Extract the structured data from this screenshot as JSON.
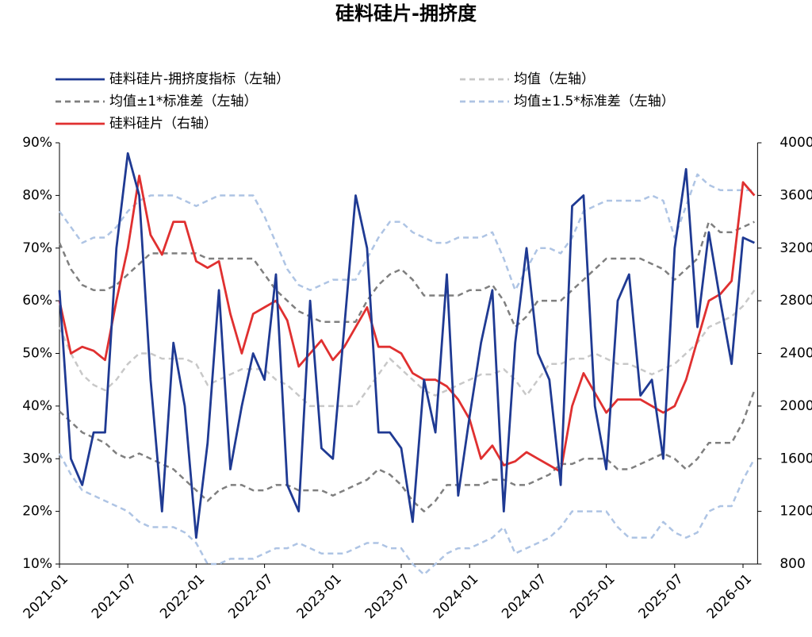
{
  "chart_data": {
    "type": "line",
    "title": "硅料硅片-拥挤度",
    "categories": [
      "2021-01",
      "2021-02",
      "2021-03",
      "2021-04",
      "2021-05",
      "2021-06",
      "2021-07",
      "2021-08",
      "2021-09",
      "2021-10",
      "2021-11",
      "2021-12",
      "2022-01",
      "2022-02",
      "2022-03",
      "2022-04",
      "2022-05",
      "2022-06",
      "2022-07",
      "2022-08",
      "2022-09",
      "2022-10",
      "2022-11",
      "2022-12",
      "2023-01",
      "2023-02",
      "2023-03",
      "2023-04",
      "2023-05",
      "2023-06",
      "2023-07",
      "2023-08",
      "2023-09",
      "2023-10",
      "2023-11",
      "2023-12",
      "2024-01",
      "2024-02",
      "2024-03",
      "2024-04",
      "2024-05",
      "2024-06",
      "2024-07",
      "2024-08",
      "2024-09",
      "2024-10",
      "2024-11",
      "2024-12",
      "2025-01",
      "2025-02",
      "2025-03",
      "2025-04",
      "2025-05",
      "2025-06",
      "2025-07",
      "2025-08",
      "2025-09",
      "2025-10",
      "2025-11",
      "2025-12",
      "2026-01",
      "2026-02"
    ],
    "xticks": [
      "2021-01",
      "2021-07",
      "2022-01",
      "2022-07",
      "2023-01",
      "2023-07",
      "2024-01",
      "2024-07",
      "2025-01",
      "2025-07",
      "2026-01"
    ],
    "ylim": [
      10,
      90
    ],
    "yticks": [
      {
        "value": 10,
        "label": "10%"
      },
      {
        "value": 20,
        "label": "20%"
      },
      {
        "value": 30,
        "label": "30%"
      },
      {
        "value": 40,
        "label": "40%"
      },
      {
        "value": 50,
        "label": "50%"
      },
      {
        "value": 60,
        "label": "60%"
      },
      {
        "value": 70,
        "label": "70%"
      },
      {
        "value": 80,
        "label": "80%"
      },
      {
        "value": 90,
        "label": "90%"
      }
    ],
    "y2lim": [
      800,
      4000
    ],
    "y2ticks": [
      800,
      1200,
      1600,
      2000,
      2400,
      2800,
      3200,
      3600,
      4000
    ],
    "series": [
      {
        "name": "硅料硅片-拥挤度指标（左轴）",
        "color": "#1f3a93",
        "dash": false,
        "axis": "y",
        "values": [
          62,
          30,
          25,
          35,
          35,
          70,
          88,
          80,
          45,
          20,
          52,
          40,
          15,
          33,
          62,
          28,
          40,
          50,
          45,
          65,
          25,
          20,
          60,
          32,
          30,
          55,
          80,
          70,
          35,
          35,
          32,
          18,
          45,
          35,
          65,
          23,
          38,
          52,
          62,
          20,
          52,
          70,
          50,
          45,
          25,
          78,
          80,
          40,
          28,
          60,
          65,
          42,
          45,
          30,
          70,
          85,
          55,
          73,
          60,
          48,
          72,
          71
        ]
      },
      {
        "name": "均值（左轴）",
        "color": "#c8c8c8",
        "dash": true,
        "axis": "y",
        "values": [
          55,
          50,
          46,
          44,
          43,
          45,
          48,
          50,
          50,
          49,
          49,
          49,
          48,
          44,
          45,
          46,
          47,
          47,
          47,
          45,
          44,
          42,
          40,
          40,
          40,
          40,
          40,
          43,
          46,
          49,
          47,
          45,
          43,
          42,
          43,
          44,
          45,
          46,
          46,
          47,
          45,
          42,
          45,
          48,
          48,
          49,
          49,
          50,
          49,
          48,
          48,
          47,
          46,
          47,
          48,
          50,
          52,
          55,
          56,
          57,
          59,
          62
        ]
      },
      {
        "name": "均值±1*标准差（左轴）",
        "color": "#7f7f7f",
        "dash": true,
        "axis": "y",
        "upper": [
          71,
          66,
          63,
          62,
          62,
          63,
          65,
          67,
          69,
          69,
          69,
          69,
          69,
          68,
          68,
          68,
          68,
          68,
          65,
          62,
          60,
          58,
          57,
          56,
          56,
          56,
          56,
          60,
          63,
          65,
          66,
          64,
          61,
          61,
          61,
          61,
          62,
          62,
          63,
          60,
          55,
          57,
          60,
          60,
          60,
          62,
          64,
          66,
          68,
          68,
          68,
          68,
          67,
          66,
          64,
          66,
          68,
          75,
          73,
          73,
          74,
          75
        ],
        "lower": [
          39,
          37,
          35,
          34,
          33,
          31,
          30,
          31,
          30,
          29,
          28,
          26,
          24,
          22,
          24,
          25,
          25,
          24,
          24,
          25,
          25,
          24,
          24,
          24,
          23,
          24,
          25,
          26,
          28,
          27,
          25,
          22,
          20,
          22,
          25,
          25,
          25,
          25,
          26,
          26,
          25,
          25,
          26,
          27,
          29,
          29,
          30,
          30,
          30,
          28,
          28,
          29,
          30,
          31,
          30,
          28,
          30,
          33,
          33,
          33,
          37,
          43
        ]
      },
      {
        "name": "均值±1.5*标准差（左轴）",
        "color": "#aec4e4",
        "dash": true,
        "axis": "y",
        "upper": [
          77,
          74,
          71,
          72,
          72,
          74,
          77,
          79,
          80,
          80,
          80,
          79,
          78,
          79,
          80,
          80,
          80,
          80,
          76,
          71,
          66,
          63,
          62,
          63,
          64,
          64,
          64,
          68,
          72,
          75,
          75,
          73,
          72,
          71,
          71,
          72,
          72,
          72,
          73,
          68,
          62,
          66,
          70,
          70,
          69,
          72,
          77,
          78,
          79,
          79,
          79,
          79,
          80,
          79,
          72,
          78,
          84,
          82,
          81,
          81,
          81,
          81
        ],
        "lower": [
          31,
          27,
          24,
          23,
          22,
          21,
          20,
          18,
          17,
          17,
          17,
          16,
          14,
          10,
          10,
          11,
          11,
          11,
          12,
          13,
          13,
          14,
          13,
          12,
          12,
          12,
          13,
          14,
          14,
          13,
          13,
          10,
          8,
          10,
          12,
          13,
          13,
          14,
          15,
          17,
          12,
          13,
          14,
          15,
          17,
          20,
          20,
          20,
          20,
          17,
          15,
          15,
          15,
          18,
          16,
          15,
          16,
          20,
          21,
          21,
          26,
          30
        ]
      },
      {
        "name": "硅料硅片（右轴）",
        "color": "#e03030",
        "dash": false,
        "axis": "y2",
        "values": [
          2800,
          2400,
          2450,
          2420,
          2350,
          2800,
          3200,
          3750,
          3300,
          3150,
          3400,
          3400,
          3100,
          3050,
          3100,
          2700,
          2400,
          2700,
          2750,
          2800,
          2650,
          2300,
          2400,
          2500,
          2350,
          2450,
          2600,
          2750,
          2450,
          2450,
          2400,
          2250,
          2200,
          2200,
          2150,
          2050,
          1900,
          1600,
          1700,
          1550,
          1580,
          1650,
          1600,
          1550,
          1500,
          2000,
          2250,
          2100,
          1950,
          2050,
          2050,
          2050,
          2000,
          1950,
          2000,
          2200,
          2500,
          2800,
          2850,
          2950,
          3700,
          3600
        ]
      }
    ]
  }
}
